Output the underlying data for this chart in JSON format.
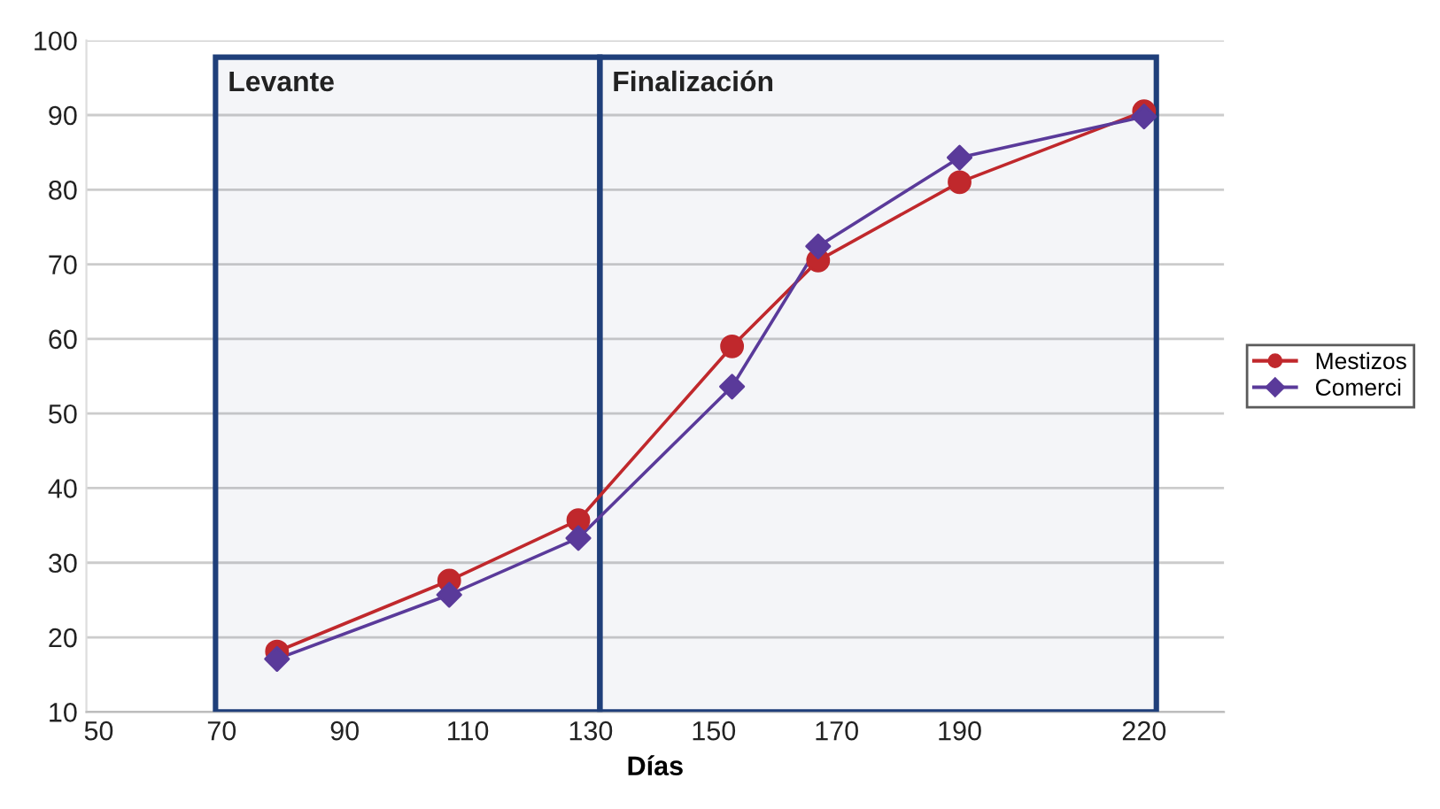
{
  "chart_data": {
    "type": "line",
    "xlabel": "Días",
    "x": [
      79,
      107,
      128,
      153,
      167,
      190,
      220
    ],
    "series": [
      {
        "name": "Mestizos",
        "color": "#c0282c",
        "marker": "circle",
        "values": [
          18.1,
          27.6,
          35.7,
          59.0,
          70.5,
          81.0,
          90.5
        ]
      },
      {
        "name": "Comerci",
        "color": "#5a3a9a",
        "marker": "diamond",
        "values": [
          17.1,
          25.7,
          33.3,
          53.6,
          72.4,
          84.3,
          89.8
        ]
      }
    ],
    "xlim": [
      48,
      233
    ],
    "xticks": [
      50,
      70,
      90,
      110,
      130,
      150,
      170,
      190,
      220
    ],
    "ylim": [
      10,
      100
    ],
    "yticks": [
      10,
      20,
      30,
      40,
      50,
      60,
      70,
      80,
      90,
      100
    ],
    "bands": [
      {
        "axis": "x",
        "from": 69,
        "to": 131.5,
        "label": "Levante",
        "color": "#1f3f7a"
      },
      {
        "axis": "x",
        "from": 131.5,
        "to": 222,
        "label": "Finalización",
        "color": "#1f3f7a"
      }
    ],
    "grid": "y",
    "legend": "right",
    "line_style": "solid"
  }
}
